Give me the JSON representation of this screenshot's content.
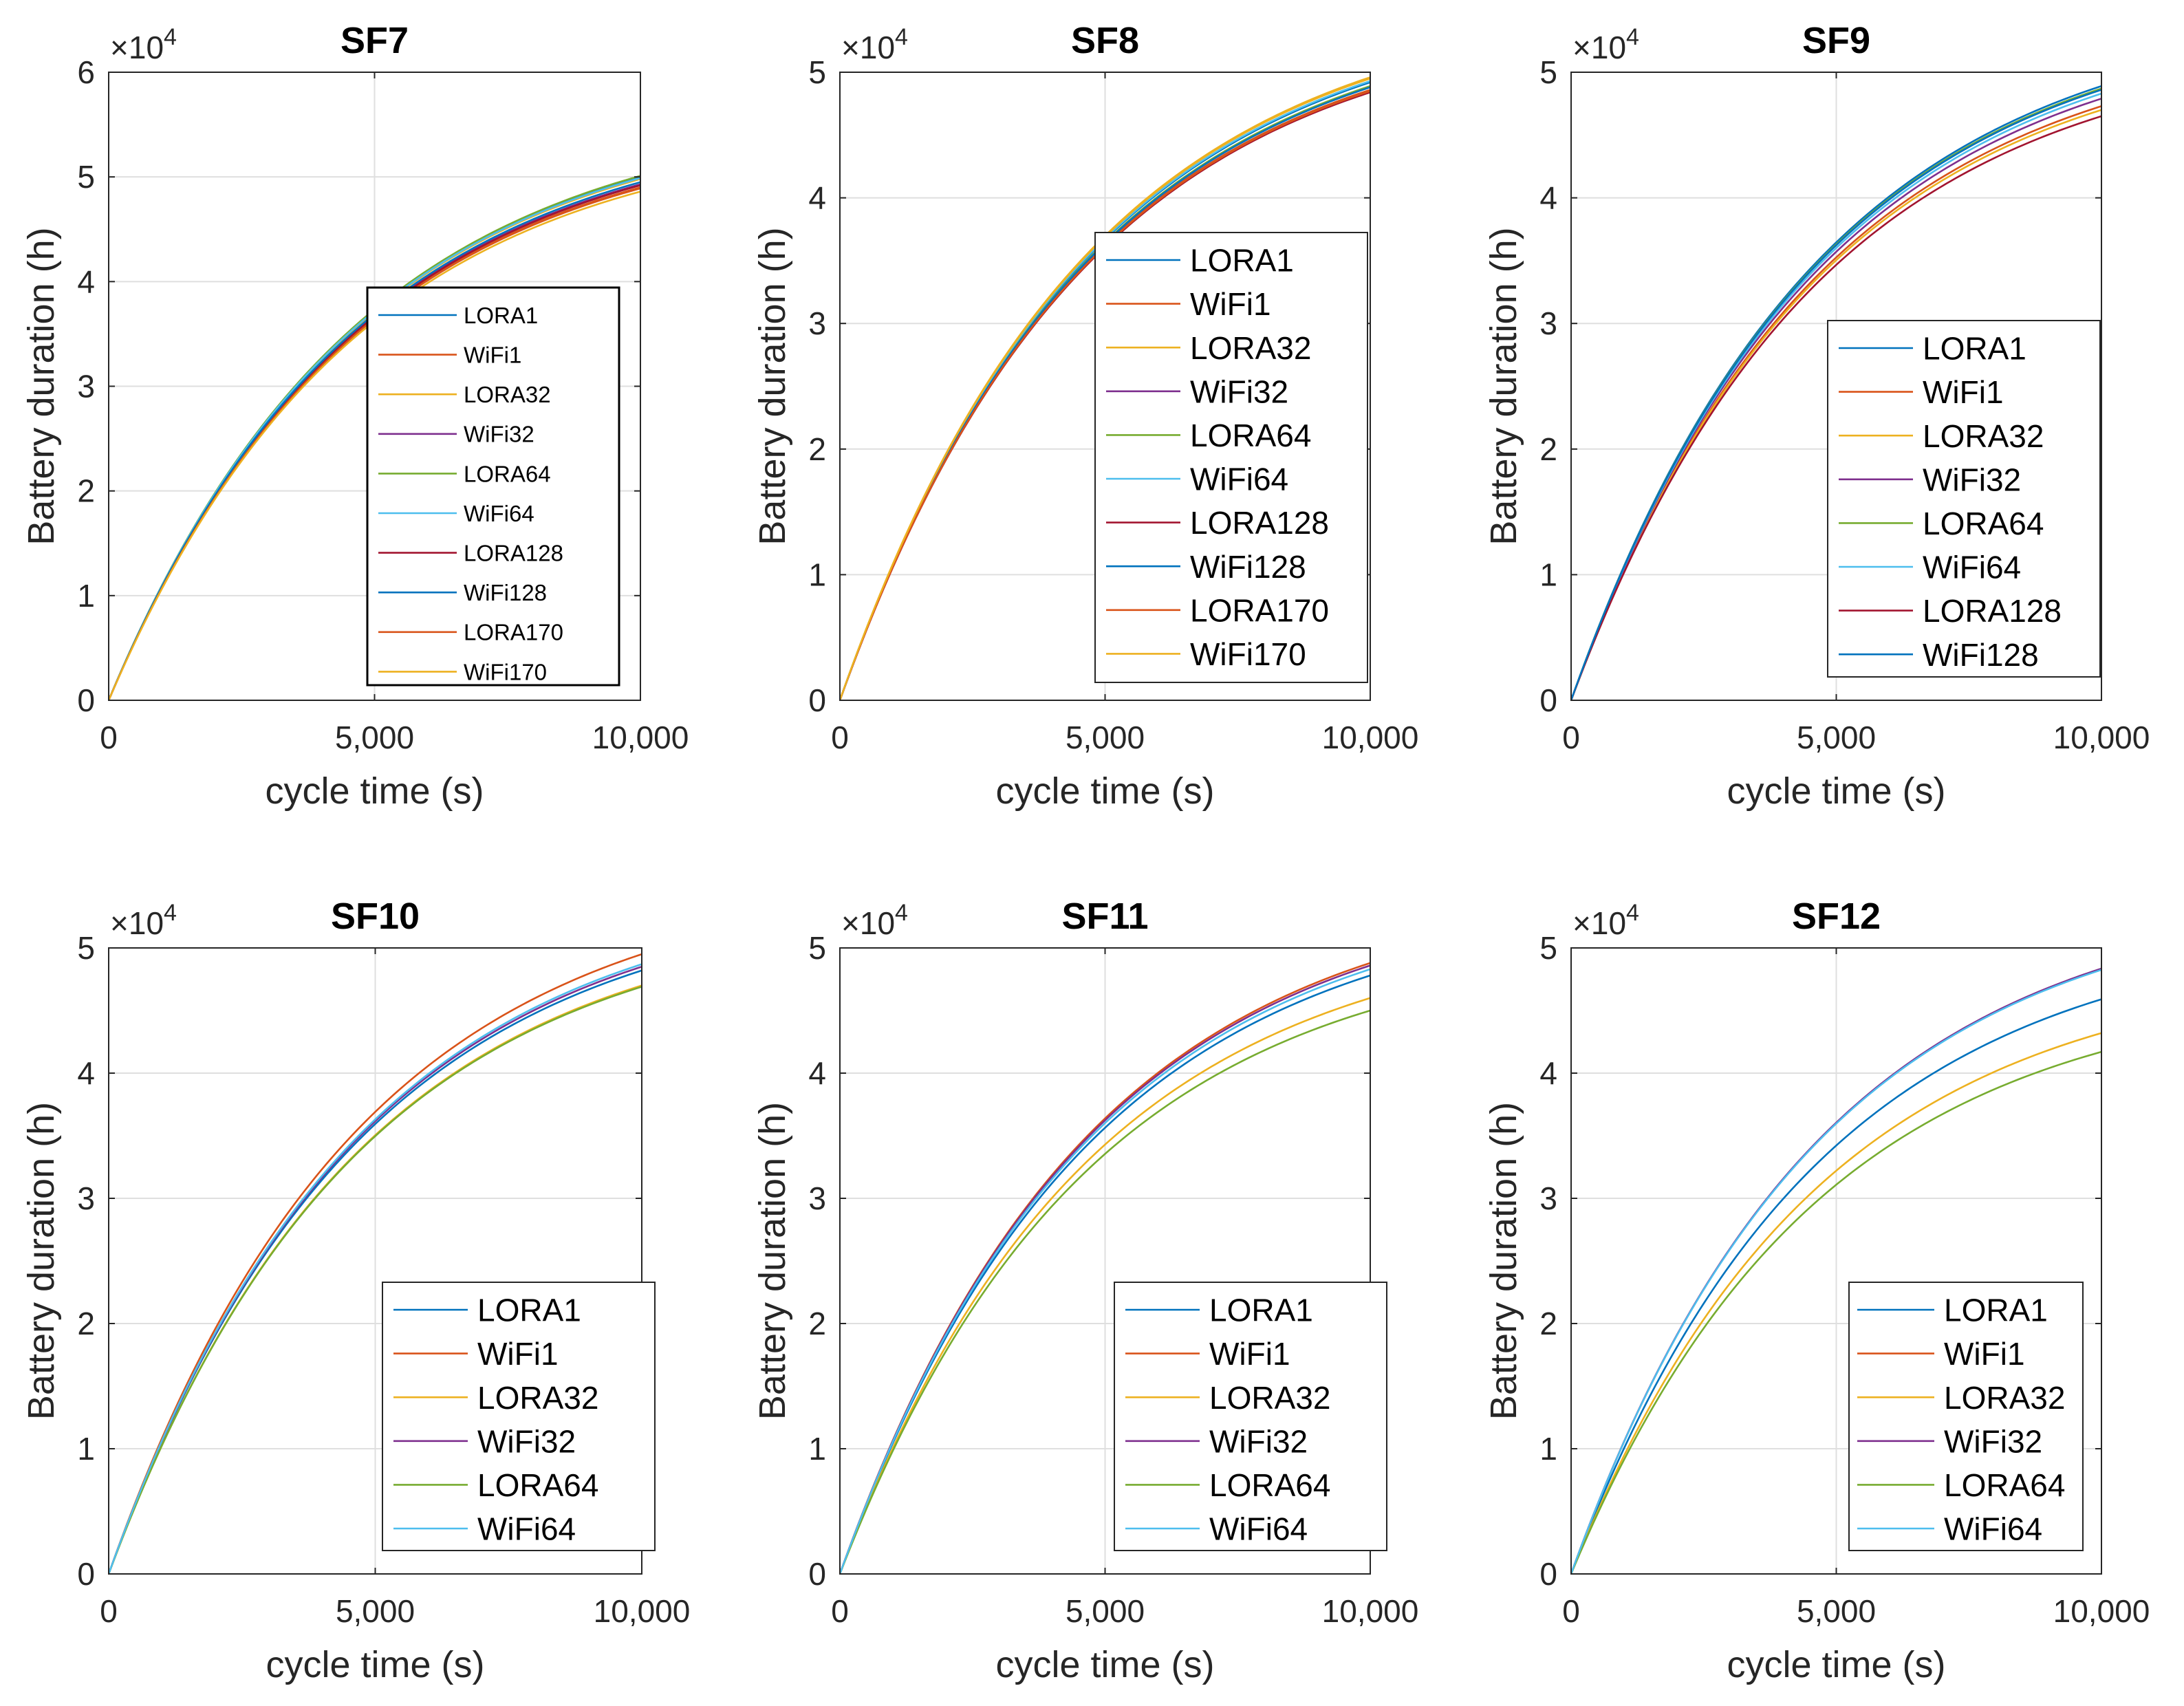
{
  "figure": {
    "background": "#ffffff"
  },
  "colors": {
    "LORA1": "#0072BD",
    "WiFi1": "#D95319",
    "LORA32": "#EDB120",
    "WiFi32": "#7E2F8E",
    "LORA64": "#77AC30",
    "WiFi64": "#4DBEEE",
    "LORA128": "#A2142F",
    "WiFi128": "#0072BD",
    "LORA170": "#D95319",
    "WiFi170": "#EDB120"
  },
  "chart_data": [
    {
      "type": "line",
      "title": "SF7",
      "xlabel": "cycle time (s)",
      "ylabel": "Battery duration (h)",
      "xlim": [
        0,
        10000
      ],
      "ylim": [
        0,
        60000
      ],
      "xticks": [
        0,
        5000,
        10000
      ],
      "xtick_labels": [
        "0",
        "5,000",
        "10,000"
      ],
      "yticks": [
        0,
        10000,
        20000,
        30000,
        40000,
        50000,
        60000
      ],
      "ytick_labels": [
        "0",
        "1",
        "2",
        "3",
        "4",
        "5",
        "6"
      ],
      "exponent_label": "×10",
      "exponent_power": "4",
      "grid": true,
      "legend_position": "center-right",
      "x": [
        0,
        10000
      ],
      "series": [
        {
          "name": "LORA1",
          "final": 50000
        },
        {
          "name": "WiFi1",
          "final": 49000
        },
        {
          "name": "LORA32",
          "final": 49800
        },
        {
          "name": "WiFi32",
          "final": 49300
        },
        {
          "name": "LORA64",
          "final": 50100
        },
        {
          "name": "WiFi64",
          "final": 49900
        },
        {
          "name": "LORA128",
          "final": 49200
        },
        {
          "name": "WiFi128",
          "final": 49500
        },
        {
          "name": "LORA170",
          "final": 48900
        },
        {
          "name": "WiFi170",
          "final": 48600
        }
      ]
    },
    {
      "type": "line",
      "title": "SF8",
      "xlabel": "cycle time (s)",
      "ylabel": "Battery duration (h)",
      "xlim": [
        0,
        10000
      ],
      "ylim": [
        0,
        50000
      ],
      "xticks": [
        0,
        5000,
        10000
      ],
      "xtick_labels": [
        "0",
        "5,000",
        "10,000"
      ],
      "yticks": [
        0,
        10000,
        20000,
        30000,
        40000,
        50000
      ],
      "ytick_labels": [
        "0",
        "1",
        "2",
        "3",
        "4",
        "5"
      ],
      "exponent_label": "×10",
      "exponent_power": "4",
      "grid": true,
      "legend_position": "center-right",
      "x": [
        0,
        10000
      ],
      "series": [
        {
          "name": "LORA1",
          "final": 49200
        },
        {
          "name": "WiFi1",
          "final": 48600
        },
        {
          "name": "LORA32",
          "final": 49600
        },
        {
          "name": "WiFi32",
          "final": 48500
        },
        {
          "name": "LORA64",
          "final": 48900
        },
        {
          "name": "WiFi64",
          "final": 49300
        },
        {
          "name": "LORA128",
          "final": 48400
        },
        {
          "name": "WiFi128",
          "final": 48800
        },
        {
          "name": "LORA170",
          "final": 48500
        },
        {
          "name": "WiFi170",
          "final": 49500
        }
      ]
    },
    {
      "type": "line",
      "title": "SF9",
      "xlabel": "cycle time (s)",
      "ylabel": "Battery duration (h)",
      "xlim": [
        0,
        10000
      ],
      "ylim": [
        0,
        50000
      ],
      "xticks": [
        0,
        5000,
        10000
      ],
      "xtick_labels": [
        "0",
        "5,000",
        "10,000"
      ],
      "yticks": [
        0,
        10000,
        20000,
        30000,
        40000,
        50000
      ],
      "ytick_labels": [
        "0",
        "1",
        "2",
        "3",
        "4",
        "5"
      ],
      "exponent_label": "×10",
      "exponent_power": "4",
      "grid": true,
      "legend_position": "bottom-right",
      "x": [
        0,
        10000
      ],
      "series": [
        {
          "name": "LORA1",
          "final": 48900
        },
        {
          "name": "WiFi1",
          "final": 47300
        },
        {
          "name": "LORA32",
          "final": 47000
        },
        {
          "name": "WiFi32",
          "final": 47900
        },
        {
          "name": "LORA64",
          "final": 48700
        },
        {
          "name": "WiFi64",
          "final": 48300
        },
        {
          "name": "LORA128",
          "final": 46500
        },
        {
          "name": "WiFi128",
          "final": 48600
        }
      ]
    },
    {
      "type": "line",
      "title": "SF10",
      "xlabel": "cycle time (s)",
      "ylabel": "Battery duration (h)",
      "xlim": [
        0,
        10000
      ],
      "ylim": [
        0,
        50000
      ],
      "xticks": [
        0,
        5000,
        10000
      ],
      "xtick_labels": [
        "0",
        "5,000",
        "10,000"
      ],
      "yticks": [
        0,
        10000,
        20000,
        30000,
        40000,
        50000
      ],
      "ytick_labels": [
        "0",
        "1",
        "2",
        "3",
        "4",
        "5"
      ],
      "exponent_label": "×10",
      "exponent_power": "4",
      "grid": true,
      "legend_position": "bottom-right",
      "x": [
        0,
        10000
      ],
      "series": [
        {
          "name": "LORA1",
          "final": 48200
        },
        {
          "name": "WiFi1",
          "final": 49500
        },
        {
          "name": "LORA32",
          "final": 47000
        },
        {
          "name": "WiFi32",
          "final": 48500
        },
        {
          "name": "LORA64",
          "final": 46900
        },
        {
          "name": "WiFi64",
          "final": 48700
        }
      ]
    },
    {
      "type": "line",
      "title": "SF11",
      "xlabel": "cycle time (s)",
      "ylabel": "Battery duration (h)",
      "xlim": [
        0,
        10000
      ],
      "ylim": [
        0,
        50000
      ],
      "xticks": [
        0,
        5000,
        10000
      ],
      "xtick_labels": [
        "0",
        "5,000",
        "10,000"
      ],
      "yticks": [
        0,
        10000,
        20000,
        30000,
        40000,
        50000
      ],
      "ytick_labels": [
        "0",
        "1",
        "2",
        "3",
        "4",
        "5"
      ],
      "exponent_label": "×10",
      "exponent_power": "4",
      "grid": true,
      "legend_position": "bottom-right",
      "x": [
        0,
        10000
      ],
      "series": [
        {
          "name": "LORA1",
          "final": 47800
        },
        {
          "name": "WiFi1",
          "final": 48800
        },
        {
          "name": "LORA32",
          "final": 46000
        },
        {
          "name": "WiFi32",
          "final": 48600
        },
        {
          "name": "LORA64",
          "final": 45000
        },
        {
          "name": "WiFi64",
          "final": 48300
        }
      ]
    },
    {
      "type": "line",
      "title": "SF12",
      "xlabel": "cycle time (s)",
      "ylabel": "Battery duration (h)",
      "xlim": [
        0,
        10000
      ],
      "ylim": [
        0,
        50000
      ],
      "xticks": [
        0,
        5000,
        10000
      ],
      "xtick_labels": [
        "0",
        "5,000",
        "10,000"
      ],
      "yticks": [
        0,
        10000,
        20000,
        30000,
        40000,
        50000
      ],
      "ytick_labels": [
        "0",
        "1",
        "2",
        "3",
        "4",
        "5"
      ],
      "exponent_label": "×10",
      "exponent_power": "4",
      "grid": true,
      "legend_position": "bottom-right",
      "x": [
        0,
        10000
      ],
      "series": [
        {
          "name": "LORA1",
          "final": 45900
        },
        {
          "name": "WiFi1",
          "final": 48300
        },
        {
          "name": "LORA32",
          "final": 43200
        },
        {
          "name": "WiFi32",
          "final": 48350
        },
        {
          "name": "LORA64",
          "final": 41700
        },
        {
          "name": "WiFi64",
          "final": 48250
        }
      ]
    }
  ]
}
